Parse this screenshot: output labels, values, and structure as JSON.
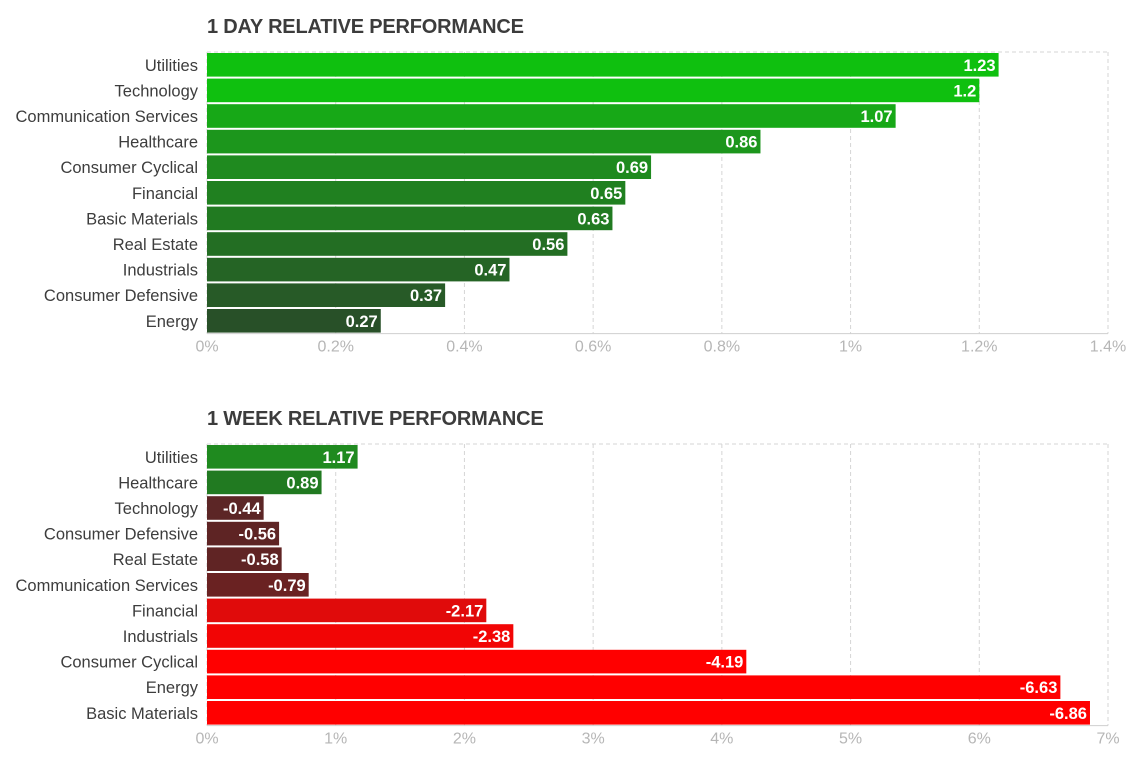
{
  "chart_data": [
    {
      "type": "bar",
      "orientation": "horizontal",
      "title": "1 DAY RELATIVE PERFORMANCE",
      "categories": [
        "Utilities",
        "Technology",
        "Communication Services",
        "Healthcare",
        "Consumer Cyclical",
        "Financial",
        "Basic Materials",
        "Real Estate",
        "Industrials",
        "Consumer Defensive",
        "Energy"
      ],
      "values": [
        1.23,
        1.2,
        1.07,
        0.86,
        0.69,
        0.65,
        0.63,
        0.56,
        0.47,
        0.37,
        0.27
      ],
      "value_labels": [
        "1.23",
        "1.2",
        "1.07",
        "0.86",
        "0.69",
        "0.65",
        "0.63",
        "0.56",
        "0.47",
        "0.37",
        "0.27"
      ],
      "colors": [
        "#0fc00f",
        "#0fc00f",
        "#17a817",
        "#1c961c",
        "#1f8a1f",
        "#208020",
        "#217a21",
        "#236e23",
        "#256425",
        "#275a27",
        "#285028"
      ],
      "xlim": [
        0,
        1.4
      ],
      "xticks": [
        0,
        0.2,
        0.4,
        0.6,
        0.8,
        1,
        1.2,
        1.4
      ],
      "xtick_labels": [
        "0%",
        "0.2%",
        "0.4%",
        "0.6%",
        "0.8%",
        "1%",
        "1.2%",
        "1.4%"
      ],
      "xlabel": "",
      "ylabel": "",
      "grid": true,
      "legend": "none"
    },
    {
      "type": "bar",
      "orientation": "horizontal",
      "title": "1 WEEK RELATIVE PERFORMANCE",
      "categories": [
        "Utilities",
        "Healthcare",
        "Technology",
        "Consumer Defensive",
        "Real Estate",
        "Communication Services",
        "Financial",
        "Industrials",
        "Consumer Cyclical",
        "Energy",
        "Basic Materials"
      ],
      "values": [
        1.17,
        0.89,
        -0.44,
        -0.56,
        -0.58,
        -0.79,
        -2.17,
        -2.38,
        -4.19,
        -6.63,
        -6.86
      ],
      "value_labels": [
        "1.17",
        "0.89",
        "-0.44",
        "-0.56",
        "-0.58",
        "-0.79",
        "-2.17",
        "-2.38",
        "-4.19",
        "-6.63",
        "-6.86"
      ],
      "magnitudes": [
        1.17,
        0.89,
        0.44,
        0.56,
        0.58,
        0.79,
        2.17,
        2.38,
        4.19,
        6.63,
        6.86
      ],
      "colors": [
        "#1f8a1f",
        "#217a21",
        "#5c2626",
        "#5e2424",
        "#602424",
        "#6a2222",
        "#e00b0b",
        "#f20505",
        "#ff0000",
        "#ff0000",
        "#ff0000"
      ],
      "xlim": [
        0,
        7
      ],
      "xticks": [
        0,
        1,
        2,
        3,
        4,
        5,
        6,
        7
      ],
      "xtick_labels": [
        "0%",
        "1%",
        "2%",
        "3%",
        "4%",
        "5%",
        "6%",
        "7%"
      ],
      "xlabel": "",
      "ylabel": "",
      "grid": true,
      "legend": "none"
    }
  ]
}
